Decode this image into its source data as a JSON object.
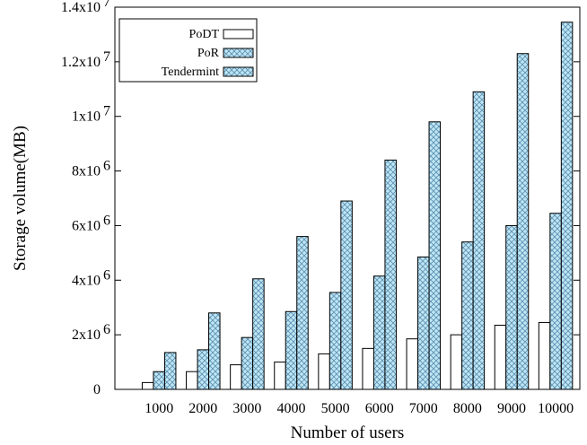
{
  "chart_data": {
    "type": "bar",
    "xlabel": "Number of users",
    "ylabel": "Storage volume(MB)",
    "ylim": [
      0,
      14000000
    ],
    "categories": [
      "1000",
      "2000",
      "3000",
      "4000",
      "5000",
      "6000",
      "7000",
      "8000",
      "9000",
      "10000"
    ],
    "y_ticks": [
      {
        "value": 0,
        "label": "0",
        "exp": ""
      },
      {
        "value": 2000000,
        "label": "2x10",
        "exp": "6"
      },
      {
        "value": 4000000,
        "label": "4x10",
        "exp": "6"
      },
      {
        "value": 6000000,
        "label": "6x10",
        "exp": "6"
      },
      {
        "value": 8000000,
        "label": "8x10",
        "exp": "6"
      },
      {
        "value": 10000000,
        "label": "1x10",
        "exp": "7"
      },
      {
        "value": 12000000,
        "label": "1.2x10",
        "exp": "7"
      },
      {
        "value": 14000000,
        "label": "1.4x10",
        "exp": "7"
      }
    ],
    "legend_position": "top-left",
    "series": [
      {
        "name": "PoDT",
        "pattern": "white",
        "values": [
          250000,
          650000,
          900000,
          1000000,
          1300000,
          1500000,
          1850000,
          2000000,
          2350000,
          2450000
        ]
      },
      {
        "name": "PoR",
        "pattern": "crosshatch",
        "values": [
          650000,
          1450000,
          1900000,
          2850000,
          3550000,
          4150000,
          4850000,
          5400000,
          6000000,
          6450000
        ]
      },
      {
        "name": "Tendermint",
        "pattern": "crosshatch",
        "values": [
          1350000,
          2800000,
          4050000,
          5600000,
          6900000,
          8400000,
          9800000,
          10900000,
          12300000,
          13450000
        ]
      }
    ],
    "colors": {
      "hatch_fill": "#bfe6f5",
      "hatch_line": "#5b8fb0",
      "border": "#000000"
    }
  }
}
